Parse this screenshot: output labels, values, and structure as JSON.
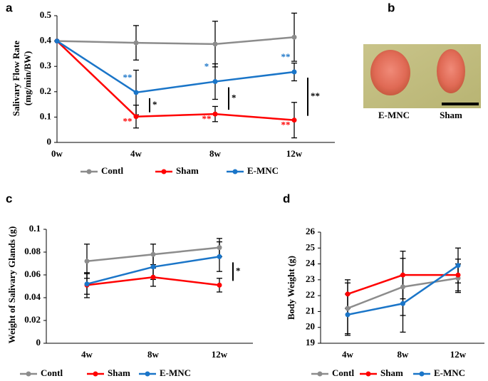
{
  "chart_data": [
    {
      "type": "line",
      "panel": "a",
      "ylabel": [
        "Salivary Flow Rate",
        "(mg/min/BW)"
      ],
      "categories": [
        "0w",
        "4w",
        "8w",
        "12w"
      ],
      "ylim": [
        0,
        0.5
      ],
      "yticks": [
        0,
        0.1,
        0.2,
        0.3,
        0.4,
        0.5
      ],
      "series": [
        {
          "name": "Contl",
          "color": "#8c8c8c",
          "values": [
            0.4,
            0.393,
            0.388,
            0.415
          ],
          "errors": [
            null,
            0.068,
            0.09,
            0.095
          ],
          "significance": [
            null,
            null,
            null,
            null
          ]
        },
        {
          "name": "Sham",
          "color": "#ff0000",
          "values": [
            0.4,
            0.102,
            0.112,
            0.088
          ],
          "errors": [
            null,
            0.045,
            0.03,
            0.07
          ],
          "significance": [
            null,
            "**",
            "**",
            "**"
          ]
        },
        {
          "name": "E-MNC",
          "color": "#1a75c8",
          "values": [
            0.4,
            0.197,
            0.24,
            0.278
          ],
          "errors": [
            null,
            0.088,
            0.07,
            0.035
          ],
          "significance": [
            null,
            "**",
            "*",
            "**"
          ]
        }
      ],
      "bracket_labels": [
        null,
        "*",
        "*",
        "**"
      ]
    },
    {
      "type": "line",
      "panel": "c",
      "ylabel": "Weight of  Salivary Glands (g)",
      "categories": [
        "4w",
        "8w",
        "12w"
      ],
      "ylim": [
        0,
        0.1
      ],
      "yticks": [
        0,
        0.02,
        0.04,
        0.06,
        0.08,
        0.1
      ],
      "series": [
        {
          "name": "Contl",
          "color": "#8c8c8c",
          "values": [
            0.072,
            0.078,
            0.084
          ],
          "errors": [
            0.015,
            0.009,
            0.008
          ]
        },
        {
          "name": "Sham",
          "color": "#ff0000",
          "values": [
            0.051,
            0.058,
            0.051
          ],
          "errors": [
            0.011,
            0.008,
            0.006
          ]
        },
        {
          "name": "E-MNC",
          "color": "#1a75c8",
          "values": [
            0.052,
            0.067,
            0.076
          ],
          "errors": [
            0.009,
            0.011,
            0.013
          ]
        }
      ],
      "bracket_labels": [
        null,
        null,
        "*"
      ]
    },
    {
      "type": "line",
      "panel": "d",
      "ylabel": "Body Weight  (g)",
      "categories": [
        "4w",
        "8w",
        "12w"
      ],
      "ylim": [
        19,
        26
      ],
      "yticks": [
        19,
        20,
        21,
        22,
        23,
        24,
        25,
        26
      ],
      "series": [
        {
          "name": "Contl",
          "color": "#8c8c8c",
          "values": [
            21.2,
            22.55,
            23.1
          ],
          "errors": [
            1.6,
            1.8,
            0.9
          ]
        },
        {
          "name": "Sham",
          "color": "#ff0000",
          "values": [
            22.1,
            23.3,
            23.3
          ],
          "errors": [
            0.9,
            1.5,
            1.0
          ]
        },
        {
          "name": "E-MNC",
          "color": "#1a75c8",
          "values": [
            20.8,
            21.5,
            23.9
          ],
          "errors": [
            1.3,
            1.8,
            1.1
          ]
        }
      ]
    }
  ],
  "photo": {
    "panel": "b",
    "labels": [
      "E-MNC",
      "Sham"
    ]
  }
}
